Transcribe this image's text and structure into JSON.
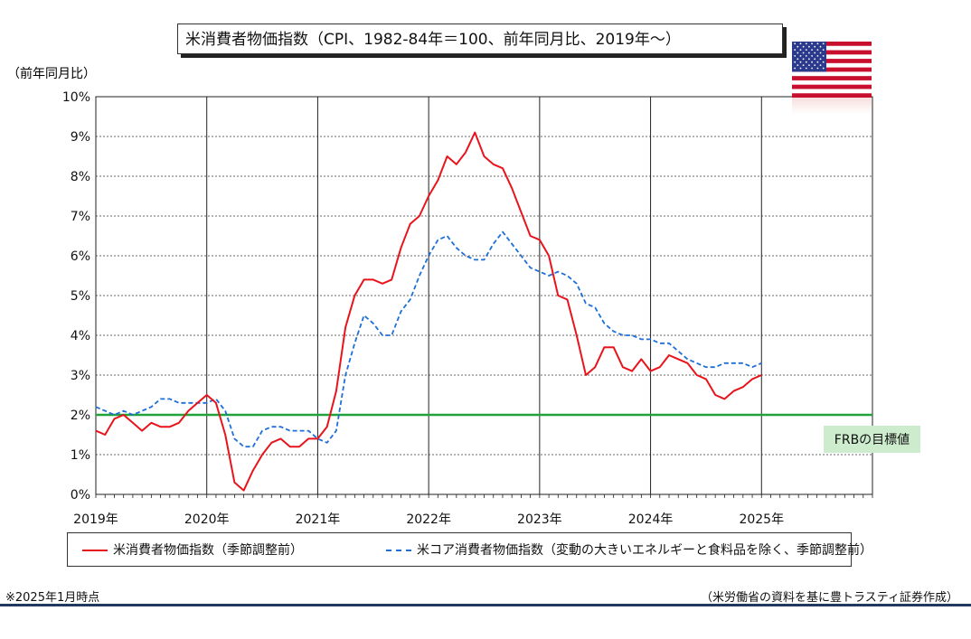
{
  "title": "米消費者物価指数（CPI、1982-84年＝100、前年同月比、2019年～）",
  "legend": {
    "series1": "米消費者物価指数（季節調整前）",
    "series2": "米コア消費者物価指数（変動の大きいエネルギーと食料品を除く、季節調整前）"
  },
  "footnote": "※2025年1月時点",
  "source": "（米労働省の資料を基に豊トラスティ証券作成）",
  "colors": {
    "headline": "#e8141c",
    "core": "#1e6fd9",
    "target": "#21a33a",
    "target_label_bg": "#cdeccd",
    "frame": "#1f3a5f"
  },
  "chart_data": {
    "type": "line",
    "ylabel": "（前年同月比）",
    "ylim": [
      0,
      10
    ],
    "yticks": [
      "0%",
      "1%",
      "2%",
      "3%",
      "4%",
      "5%",
      "6%",
      "7%",
      "8%",
      "9%",
      "10%"
    ],
    "xticks": [
      "2019年",
      "2020年",
      "2021年",
      "2022年",
      "2023年",
      "2024年",
      "2025年"
    ],
    "x_start": "2019-01",
    "x_end": "2025-12",
    "grid": true,
    "target_line": {
      "value": 2,
      "label": "FRBの目標値"
    },
    "series": [
      {
        "name": "米消費者物価指数（季節調整前）",
        "values": [
          1.6,
          1.5,
          1.9,
          2.0,
          1.8,
          1.6,
          1.8,
          1.7,
          1.7,
          1.8,
          2.1,
          2.3,
          2.5,
          2.3,
          1.5,
          0.3,
          0.1,
          0.6,
          1.0,
          1.3,
          1.4,
          1.2,
          1.2,
          1.4,
          1.4,
          1.7,
          2.6,
          4.2,
          5.0,
          5.4,
          5.4,
          5.3,
          5.4,
          6.2,
          6.8,
          7.0,
          7.5,
          7.9,
          8.5,
          8.3,
          8.6,
          9.1,
          8.5,
          8.3,
          8.2,
          7.7,
          7.1,
          6.5,
          6.4,
          6.0,
          5.0,
          4.9,
          4.0,
          3.0,
          3.2,
          3.7,
          3.7,
          3.2,
          3.1,
          3.4,
          3.1,
          3.2,
          3.5,
          3.4,
          3.3,
          3.0,
          2.9,
          2.5,
          2.4,
          2.6,
          2.7,
          2.9,
          3.0
        ]
      },
      {
        "name": "米コア消費者物価指数（変動の大きいエネルギーと食料品を除く、季節調整前）",
        "values": [
          2.2,
          2.1,
          2.0,
          2.1,
          2.0,
          2.1,
          2.2,
          2.4,
          2.4,
          2.3,
          2.3,
          2.3,
          2.3,
          2.4,
          2.1,
          1.4,
          1.2,
          1.2,
          1.6,
          1.7,
          1.7,
          1.6,
          1.6,
          1.6,
          1.4,
          1.3,
          1.6,
          3.0,
          3.8,
          4.5,
          4.3,
          4.0,
          4.0,
          4.6,
          4.9,
          5.5,
          6.0,
          6.4,
          6.5,
          6.2,
          6.0,
          5.9,
          5.9,
          6.3,
          6.6,
          6.3,
          6.0,
          5.7,
          5.6,
          5.5,
          5.6,
          5.5,
          5.3,
          4.8,
          4.7,
          4.3,
          4.1,
          4.0,
          4.0,
          3.9,
          3.9,
          3.8,
          3.8,
          3.6,
          3.4,
          3.3,
          3.2,
          3.2,
          3.3,
          3.3,
          3.3,
          3.2,
          3.3
        ]
      }
    ]
  }
}
